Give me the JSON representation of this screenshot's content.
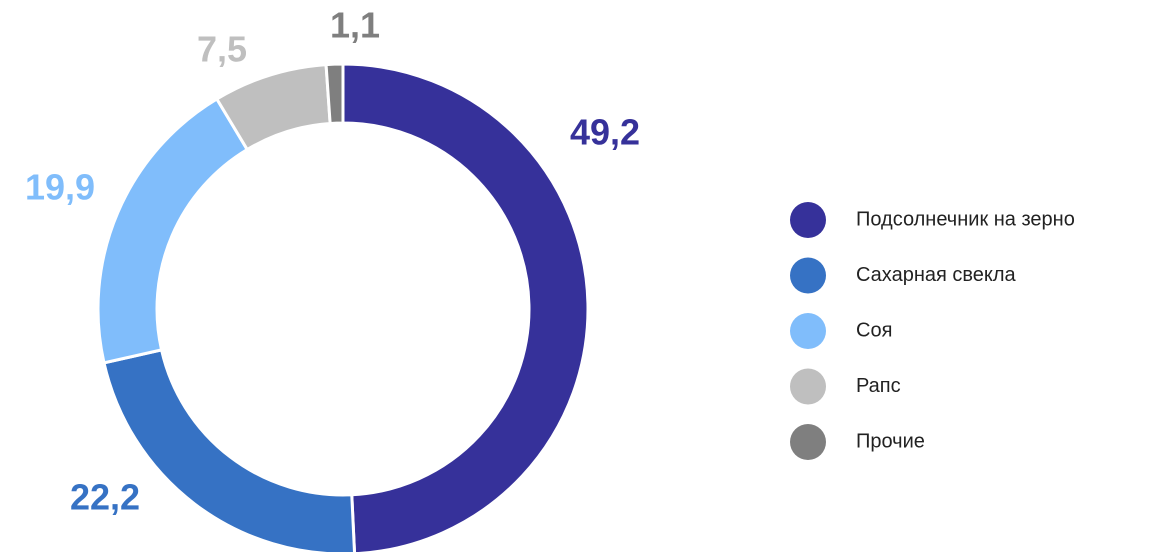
{
  "chart_data": {
    "type": "donut",
    "categories": [
      "Подсолнечник на зерно",
      "Сахарная свекла",
      "Соя",
      "Рапс",
      "Прочие"
    ],
    "values": [
      49.2,
      22.2,
      19.9,
      7.5,
      1.1
    ],
    "value_labels": [
      "49,2",
      "22,2",
      "19,9",
      "7,5",
      "1,1"
    ],
    "colors": [
      "#36319a",
      "#3672c4",
      "#80bdfb",
      "#bfbfbf",
      "#7f7f7f"
    ],
    "legend": "right"
  }
}
